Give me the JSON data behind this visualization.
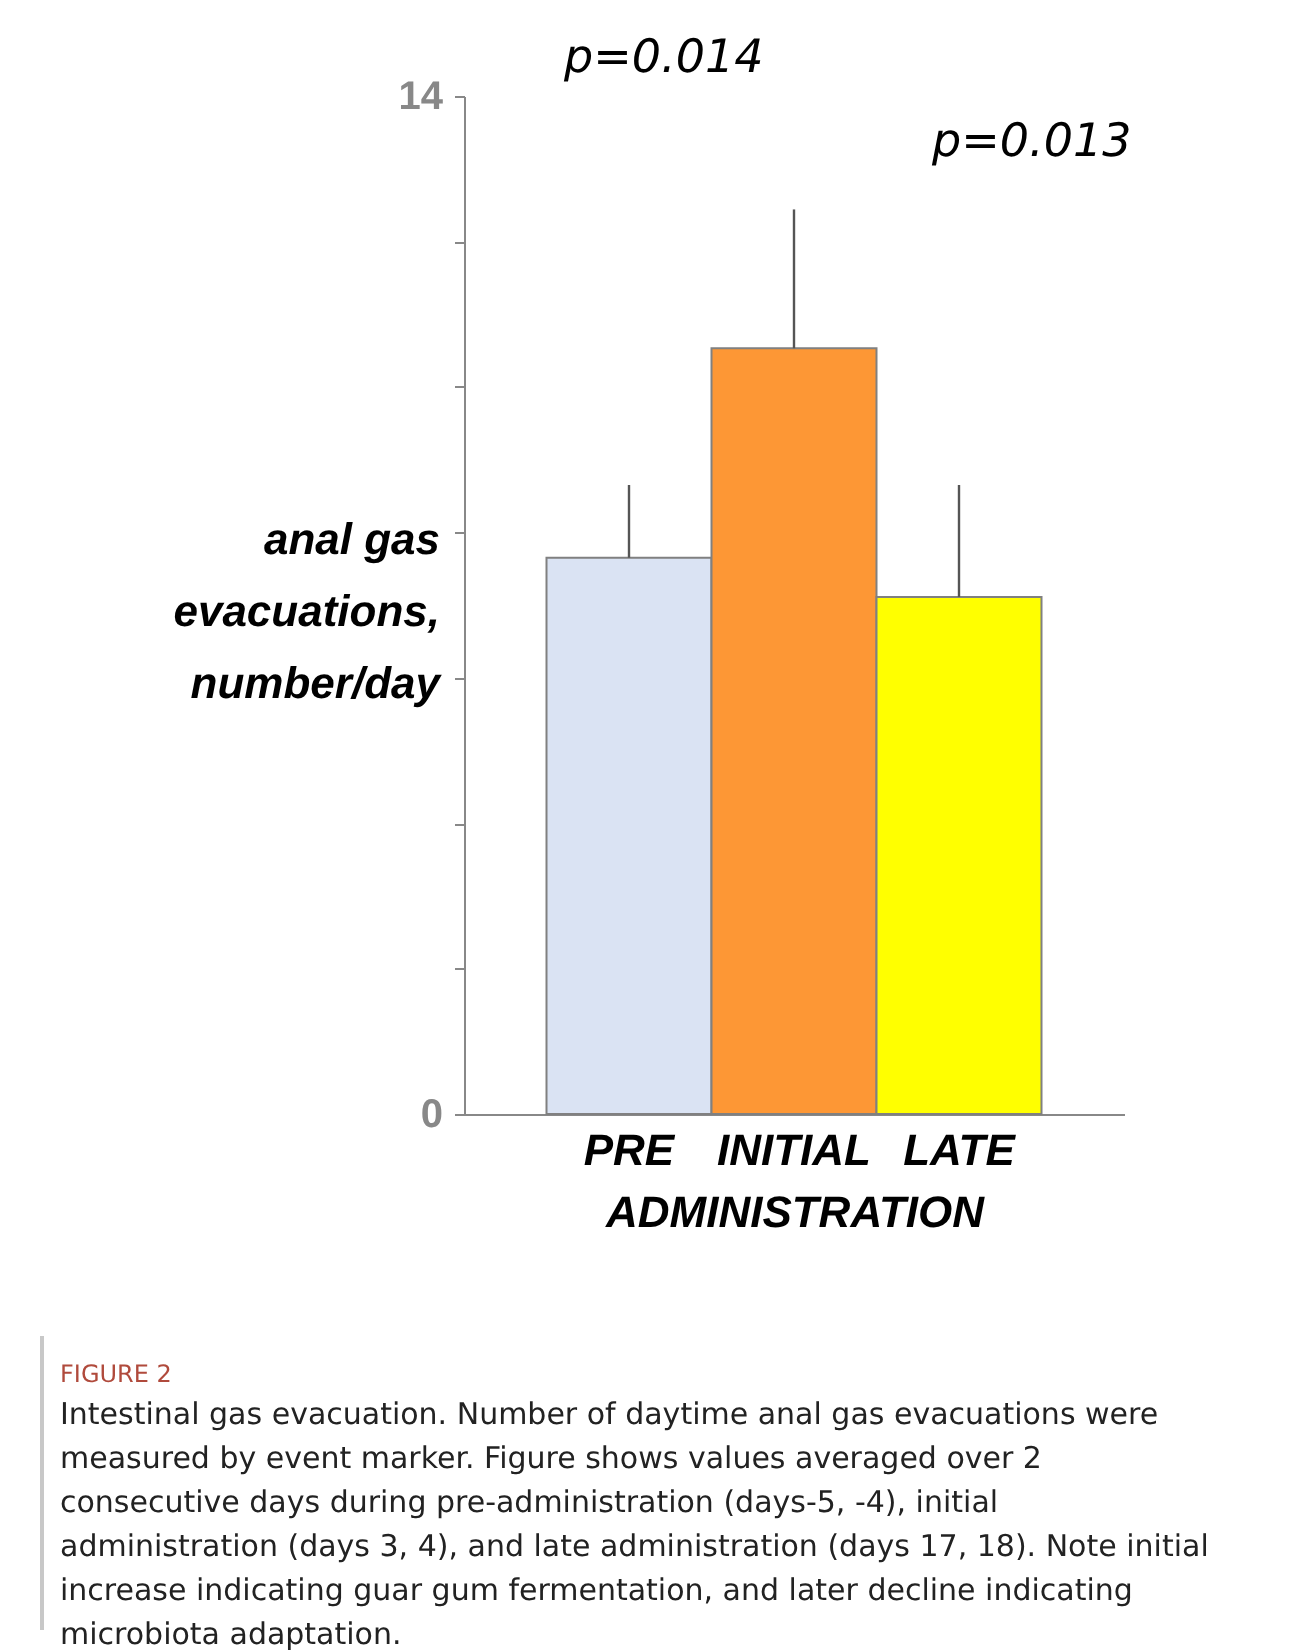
{
  "chart_data": {
    "type": "bar",
    "ylabel": "anal gas evacuations, number/day",
    "xlabel": "ADMINISTRATION",
    "categories": [
      "PRE",
      "INITIAL",
      "LATE"
    ],
    "values": [
      7.65,
      10.53,
      7.11
    ],
    "colors": [
      "#dae3f3",
      "#fd9735",
      "#ffff00"
    ],
    "errors": [
      [
        7.65,
        8.65
      ],
      [
        10.53,
        12.44
      ],
      [
        7.11,
        8.65
      ]
    ],
    "ylim": [
      0,
      14
    ],
    "yticks": [
      0,
      {
        "value": 2,
        "label": null
      },
      {
        "value": 4,
        "label": null
      },
      {
        "value": 6,
        "label": null
      },
      {
        "value": 8,
        "label": null
      },
      {
        "value": 10,
        "label": null
      },
      {
        "value": 12,
        "label": null
      },
      14
    ],
    "grid": false,
    "annotations": [
      "p=0.014",
      "p=0.013",
      "FIGURE 2",
      "Intestinal gas evacuation. Number of daytime anal gas evacuations were measured by event marker. Figure shows values averaged over 2 consecutive days during pre-administration (days-5, -4), initial administration (days 3, 4), and late administration (days 17, 18). Note initial increase indicating guar gum fermentation, and later decline indicating microbiota adaptation."
    ]
  }
}
